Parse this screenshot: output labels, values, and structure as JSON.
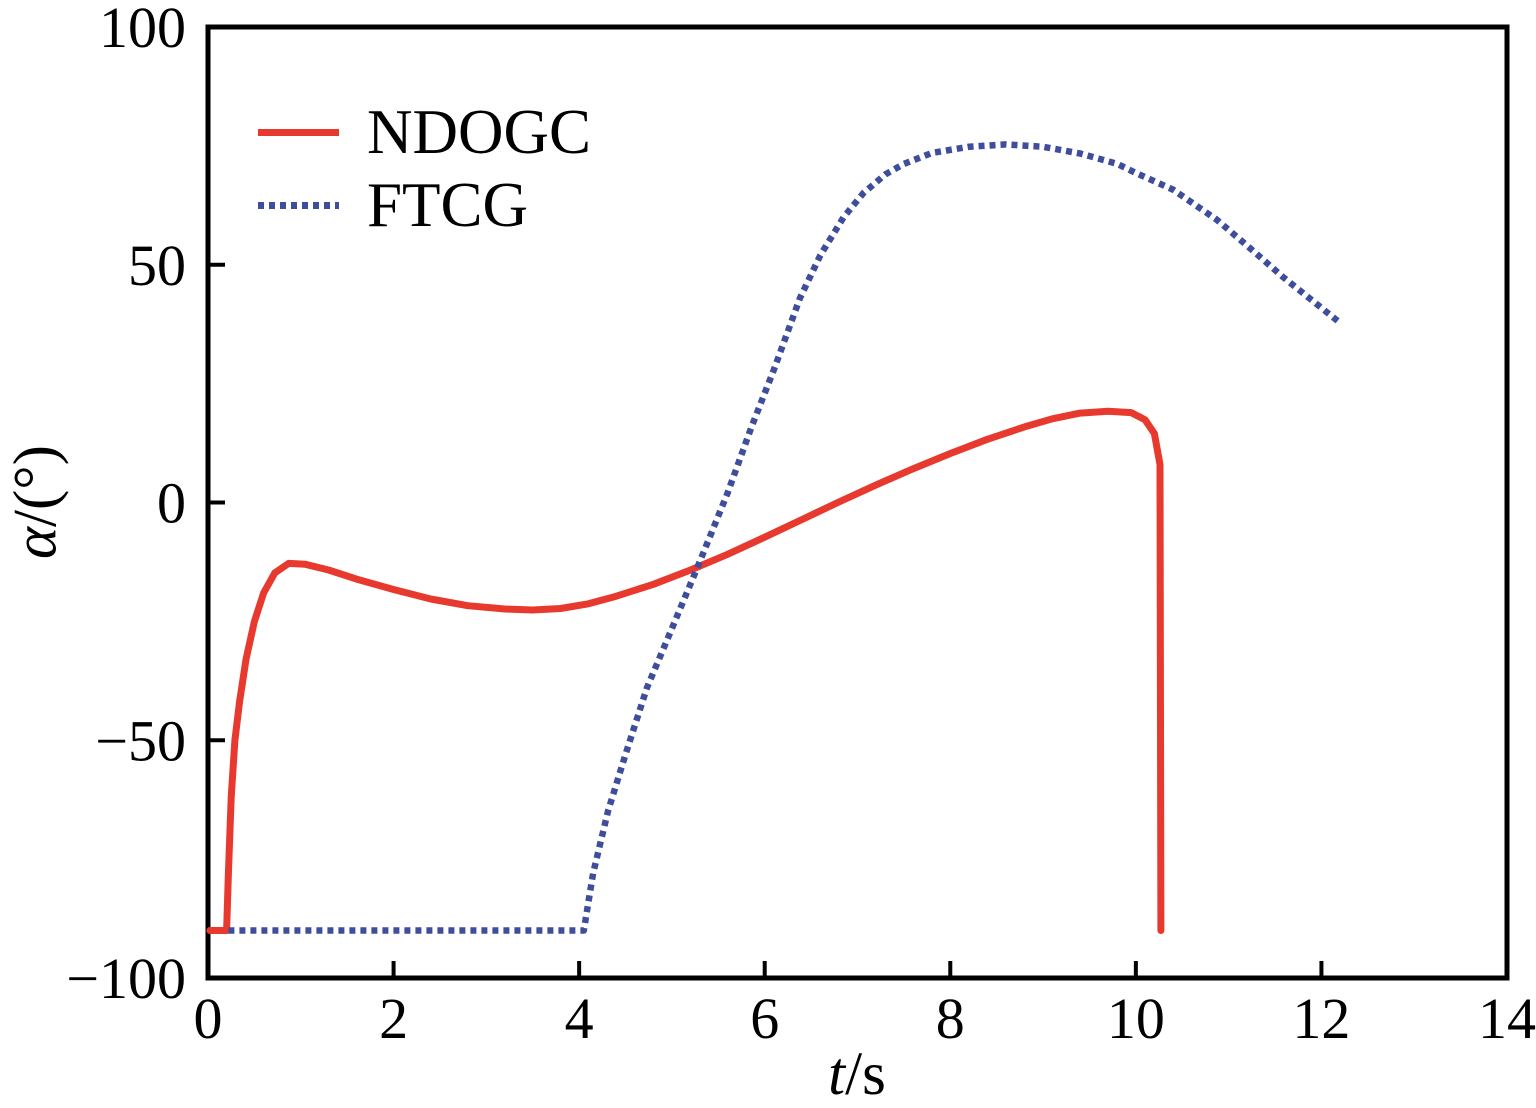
{
  "chart_data": {
    "type": "line",
    "title": "",
    "xlabel_italic": "t",
    "xlabel_rest": "/s",
    "ylabel_italic": "α",
    "ylabel_rest": "/(°)",
    "xlim": [
      0,
      14
    ],
    "ylim": [
      -100,
      100
    ],
    "x_ticks": [
      0,
      2,
      4,
      6,
      8,
      10,
      12,
      14
    ],
    "x_tick_labels": [
      "0",
      "2",
      "4",
      "6",
      "8",
      "10",
      "12",
      "14"
    ],
    "y_ticks": [
      -100,
      -50,
      0,
      50,
      100
    ],
    "y_tick_labels": [
      "−100",
      "−50",
      "0",
      "50",
      "100"
    ],
    "grid": false,
    "legend_position": "upper-left",
    "axis_color": "#000000",
    "series": [
      {
        "name": "NDOGC",
        "color": "#e8392f",
        "style": "solid",
        "points": [
          [
            0.02,
            -90
          ],
          [
            0.2,
            -90
          ],
          [
            0.22,
            -78
          ],
          [
            0.25,
            -62
          ],
          [
            0.29,
            -50
          ],
          [
            0.34,
            -42
          ],
          [
            0.41,
            -33
          ],
          [
            0.5,
            -25
          ],
          [
            0.6,
            -19
          ],
          [
            0.72,
            -14.8
          ],
          [
            0.87,
            -12.8
          ],
          [
            1.05,
            -13.0
          ],
          [
            1.3,
            -14.2
          ],
          [
            1.6,
            -16.1
          ],
          [
            2.0,
            -18.3
          ],
          [
            2.4,
            -20.3
          ],
          [
            2.8,
            -21.7
          ],
          [
            3.2,
            -22.4
          ],
          [
            3.5,
            -22.6
          ],
          [
            3.8,
            -22.3
          ],
          [
            4.1,
            -21.3
          ],
          [
            4.4,
            -19.7
          ],
          [
            4.8,
            -17.2
          ],
          [
            5.2,
            -14.2
          ],
          [
            5.6,
            -10.9
          ],
          [
            6.0,
            -7.3
          ],
          [
            6.4,
            -3.6
          ],
          [
            6.8,
            0.1
          ],
          [
            7.2,
            3.7
          ],
          [
            7.6,
            7.1
          ],
          [
            8.0,
            10.3
          ],
          [
            8.4,
            13.3
          ],
          [
            8.8,
            15.9
          ],
          [
            9.1,
            17.6
          ],
          [
            9.4,
            18.8
          ],
          [
            9.7,
            19.2
          ],
          [
            9.95,
            18.9
          ],
          [
            10.1,
            17.4
          ],
          [
            10.2,
            14.5
          ],
          [
            10.26,
            8.0
          ],
          [
            10.27,
            -90
          ]
        ]
      },
      {
        "name": "FTCG",
        "color": "#3f4e9b",
        "style": "dotted",
        "points": [
          [
            0.22,
            -90
          ],
          [
            4.05,
            -90
          ],
          [
            4.15,
            -78
          ],
          [
            4.31,
            -65
          ],
          [
            4.5,
            -53
          ],
          [
            4.73,
            -39
          ],
          [
            5.0,
            -26.5
          ],
          [
            5.28,
            -13.4
          ],
          [
            5.6,
            2.0
          ],
          [
            5.86,
            16.0
          ],
          [
            6.1,
            28.0
          ],
          [
            6.38,
            43.0
          ],
          [
            6.6,
            52.0
          ],
          [
            6.85,
            60.0
          ],
          [
            7.06,
            65.0
          ],
          [
            7.3,
            69.0
          ],
          [
            7.5,
            71.2
          ],
          [
            7.8,
            73.5
          ],
          [
            8.2,
            74.8
          ],
          [
            8.6,
            75.3
          ],
          [
            9.0,
            74.8
          ],
          [
            9.4,
            73.4
          ],
          [
            9.8,
            71.2
          ],
          [
            10.0,
            69.3
          ],
          [
            10.4,
            65.8
          ],
          [
            10.87,
            59.5
          ],
          [
            11.2,
            54.0
          ],
          [
            11.58,
            47.5
          ],
          [
            11.9,
            42.5
          ],
          [
            12.2,
            37.8
          ]
        ]
      }
    ]
  }
}
